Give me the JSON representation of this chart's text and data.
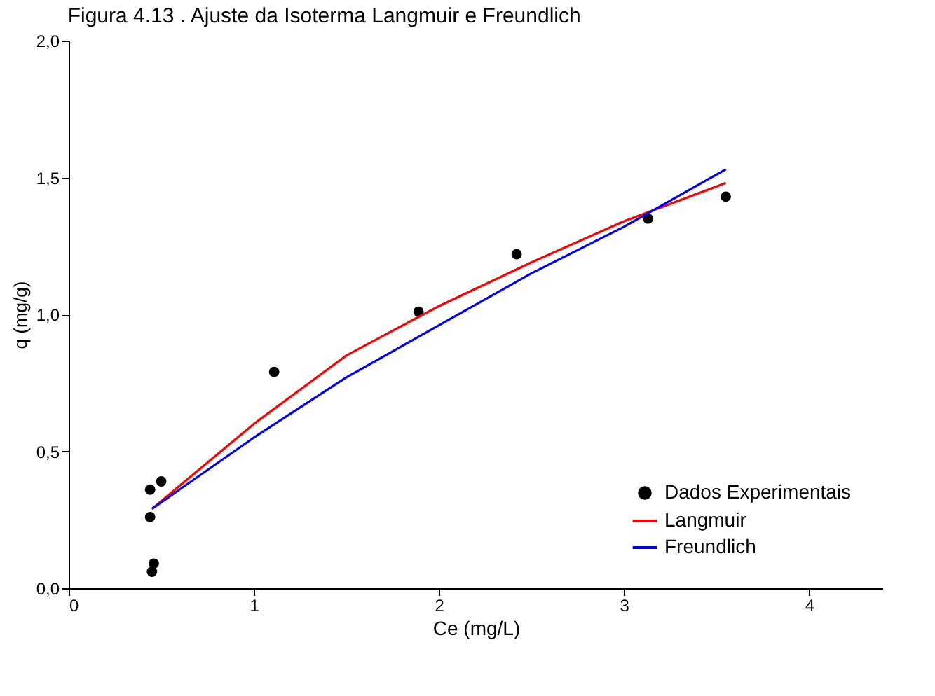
{
  "chart_data": {
    "type": "scatter",
    "title": "Figura 4.13 .  Ajuste da Isoterma Langmuir e Freundlich",
    "xlabel": "Ce (mg/L)",
    "ylabel": "q (mg/g)",
    "xlim": [
      0,
      4.4
    ],
    "ylim": [
      0,
      2
    ],
    "xticks": [
      0,
      1,
      2,
      3,
      4
    ],
    "yticks": [
      {
        "value": 0,
        "label": "0,0"
      },
      {
        "value": 0.5,
        "label": "0,5"
      },
      {
        "value": 1,
        "label": "1,0"
      },
      {
        "value": 1.5,
        "label": "1,5"
      },
      {
        "value": 2,
        "label": "2,0"
      }
    ],
    "grid": false,
    "legend": "bottom right",
    "series": [
      {
        "name": "Dados Experimentais",
        "marker": "circle",
        "color": "#000000",
        "x": [
          0.45,
          0.46,
          0.44,
          0.44,
          0.5,
          1.11,
          1.89,
          2.42,
          3.13,
          3.55
        ],
        "values": [
          0.06,
          0.09,
          0.26,
          0.36,
          0.39,
          0.79,
          1.01,
          1.22,
          1.35,
          1.43
        ]
      },
      {
        "name": "Langmuir",
        "type": "line",
        "color": "#ff0000",
        "x": [
          0.45,
          1,
          1.5,
          2,
          2.5,
          3,
          3.55
        ],
        "values": [
          0.29,
          0.6,
          0.85,
          1.03,
          1.19,
          1.34,
          1.48
        ]
      },
      {
        "name": "Freundlich",
        "type": "line",
        "color": "#0000ff",
        "x": [
          0.45,
          1,
          1.5,
          2,
          2.5,
          3,
          3.55
        ],
        "values": [
          0.29,
          0.55,
          0.77,
          0.96,
          1.15,
          1.32,
          1.53
        ]
      }
    ]
  }
}
